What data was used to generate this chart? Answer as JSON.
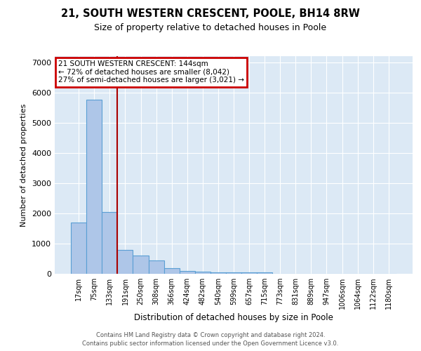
{
  "title1": "21, SOUTH WESTERN CRESCENT, POOLE, BH14 8RW",
  "title2": "Size of property relative to detached houses in Poole",
  "xlabel": "Distribution of detached houses by size in Poole",
  "ylabel": "Number of detached properties",
  "categories": [
    "17sqm",
    "75sqm",
    "133sqm",
    "191sqm",
    "250sqm",
    "308sqm",
    "366sqm",
    "424sqm",
    "482sqm",
    "540sqm",
    "599sqm",
    "657sqm",
    "715sqm",
    "773sqm",
    "831sqm",
    "889sqm",
    "947sqm",
    "1006sqm",
    "1064sqm",
    "1122sqm",
    "1180sqm"
  ],
  "values": [
    1700,
    5750,
    2050,
    800,
    600,
    430,
    180,
    100,
    80,
    50,
    40,
    40,
    50,
    0,
    0,
    0,
    0,
    0,
    0,
    0,
    0
  ],
  "bar_color": "#aec6e8",
  "bar_edge_color": "#5a9fd4",
  "vline_color": "#aa0000",
  "annotation_title": "21 SOUTH WESTERN CRESCENT: 144sqm",
  "annotation_line1": "← 72% of detached houses are smaller (8,042)",
  "annotation_line2": "27% of semi-detached houses are larger (3,021) →",
  "annotation_box_color": "#cc0000",
  "background_color": "#dce9f5",
  "ylim": [
    0,
    7200
  ],
  "footer1": "Contains HM Land Registry data © Crown copyright and database right 2024.",
  "footer2": "Contains public sector information licensed under the Open Government Licence v3.0."
}
